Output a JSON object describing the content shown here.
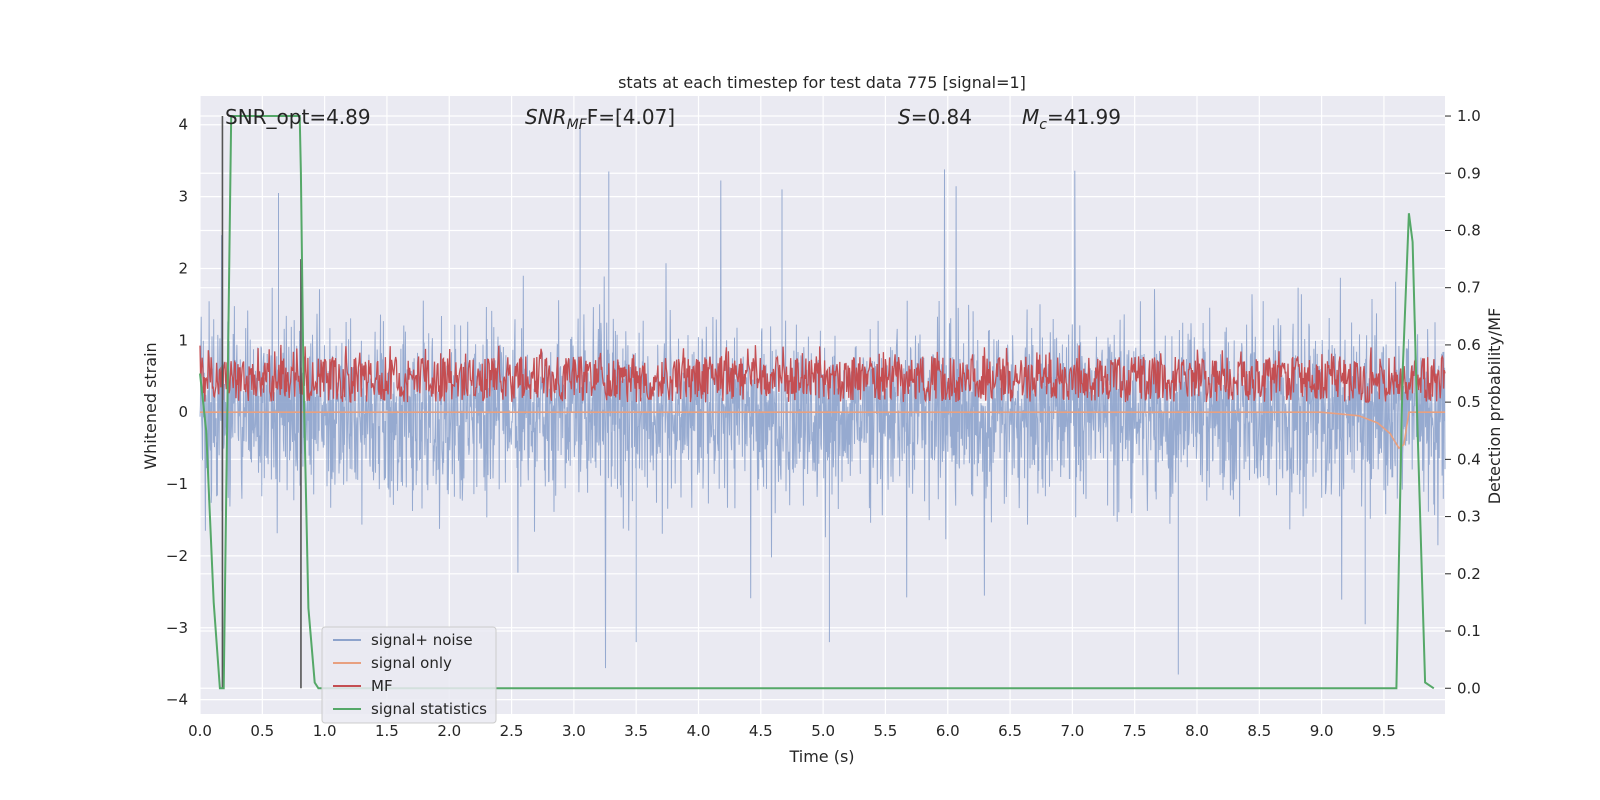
{
  "chart_data": {
    "type": "line",
    "title": "stats at each timestep for test data 775 [signal=1]",
    "xlabel": "Time (s)",
    "ylabel_left": "Whitened strain",
    "ylabel_right": "Detection probability/MF",
    "xlim": [
      0.0,
      9.99
    ],
    "ylim_left": [
      -4.2,
      4.4
    ],
    "ylim_right": [
      -0.045,
      1.035
    ],
    "x_ticks": [
      "0.0",
      "0.5",
      "1.0",
      "1.5",
      "2.0",
      "2.5",
      "3.0",
      "3.5",
      "4.0",
      "4.5",
      "5.0",
      "5.5",
      "6.0",
      "6.5",
      "7.0",
      "7.5",
      "8.0",
      "8.5",
      "9.0",
      "9.5"
    ],
    "y_ticks_left": [
      "−4",
      "−3",
      "−2",
      "−1",
      "0",
      "1",
      "2",
      "3",
      "4"
    ],
    "y_ticks_right": [
      "0.0",
      "0.1",
      "0.2",
      "0.3",
      "0.4",
      "0.5",
      "0.6",
      "0.7",
      "0.8",
      "0.9",
      "1.0"
    ],
    "grid": true,
    "legend_position": "lower-left",
    "annotations": {
      "snr_opt": "SNR_opt=4.89",
      "snr_mf_main": "SNR",
      "snr_mf_sub": "MF",
      "snr_mf_rest": "F=[4.07]",
      "s_main": "S",
      "s_rest": "=0.84",
      "mc_main": "M",
      "mc_sub": "c",
      "mc_rest": "=41.99"
    },
    "series": [
      {
        "name": "signal+ noise",
        "axis": "left",
        "color": "#8da3cc",
        "style": "dense noise",
        "typical_range": [
          -1.5,
          1.6
        ],
        "extremes": [
          -3.7,
          4.0
        ],
        "peaks": [
          [
            3.05,
            4.0
          ],
          [
            0.63,
            3.05
          ],
          [
            3.28,
            3.35
          ],
          [
            4.67,
            3.1
          ],
          [
            7.85,
            -3.65
          ],
          [
            3.5,
            -3.2
          ],
          [
            5.05,
            -3.2
          ],
          [
            9.35,
            -2.95
          ]
        ]
      },
      {
        "name": "signal only",
        "axis": "left",
        "color": "#e8a080",
        "x": [
          0.0,
          9.0,
          9.3,
          9.45,
          9.55,
          9.62,
          9.66,
          9.7,
          9.99
        ],
        "y": [
          0.0,
          0.0,
          -0.05,
          -0.15,
          -0.3,
          -0.5,
          -0.45,
          0.0,
          0.0
        ]
      },
      {
        "name": "MF",
        "axis": "right",
        "color": "#c44e52",
        "style": "dense noise",
        "typical_range": [
          0.5,
          0.58
        ],
        "peak_y": 0.6
      },
      {
        "name": "signal statistics",
        "axis": "right",
        "color": "#55a868",
        "x": [
          0.0,
          0.05,
          0.11,
          0.16,
          0.19,
          0.25,
          0.8,
          0.81,
          0.83,
          0.87,
          0.92,
          0.95,
          9.6,
          9.65,
          9.7,
          9.73,
          9.77,
          9.83,
          9.9
        ],
        "y": [
          0.55,
          0.45,
          0.15,
          0.0,
          0.0,
          1.0,
          1.0,
          0.9,
          0.55,
          0.14,
          0.01,
          0.0,
          0.0,
          0.55,
          0.83,
          0.78,
          0.45,
          0.01,
          0.0
        ]
      }
    ],
    "markers": [
      {
        "x": 0.18,
        "y_top": 1.0,
        "y_bottom": 0.0
      },
      {
        "x": 0.81,
        "y_top": 0.75,
        "y_bottom": 0.0
      }
    ]
  },
  "colors": {
    "axes_bg": "#eaeaf2",
    "grid": "#ffffff",
    "text": "#262626",
    "marker_line": "#555555"
  }
}
